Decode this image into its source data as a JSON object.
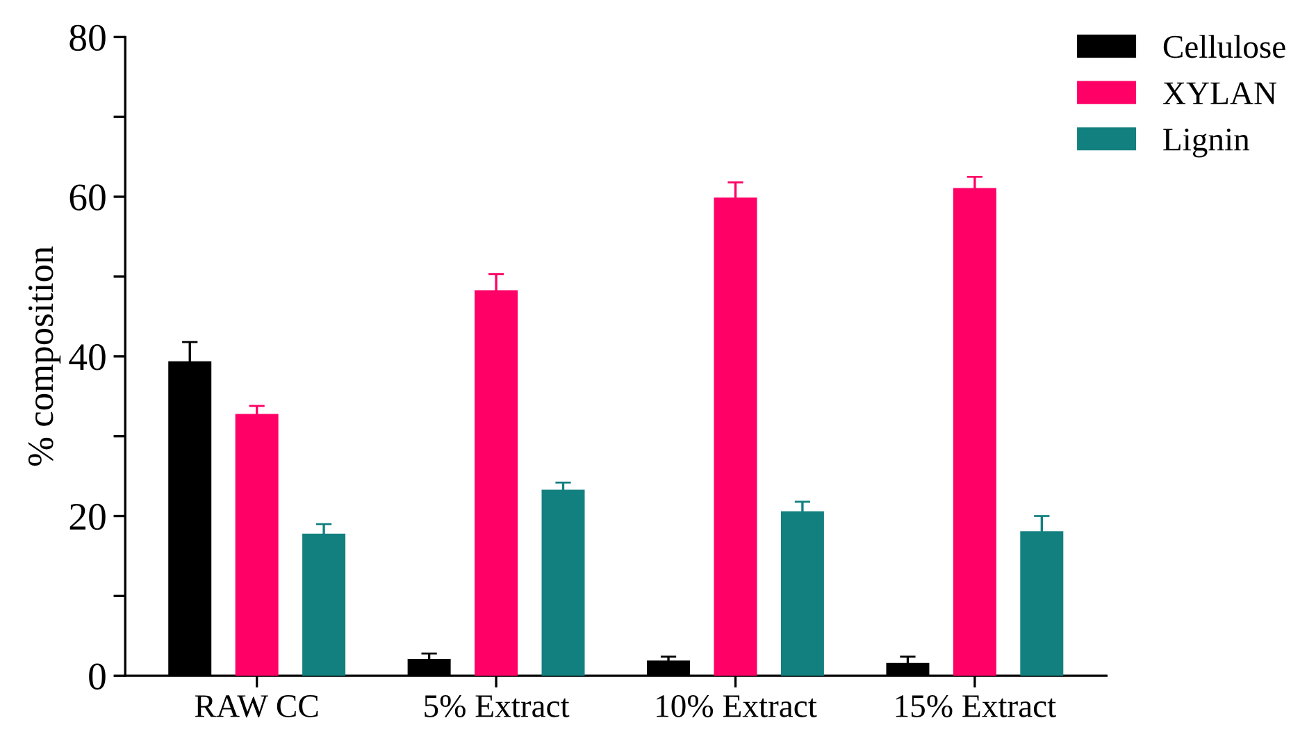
{
  "chart_data": {
    "type": "bar",
    "ylabel": "% composition",
    "categories": [
      "RAW CC",
      "5% Extract",
      "10% Extract",
      "15% Extract"
    ],
    "series": [
      {
        "name": "Cellulose",
        "color": "#000000",
        "values": [
          39.4,
          2.1,
          1.9,
          1.6
        ],
        "errors": [
          2.4,
          0.7,
          0.5,
          0.8
        ]
      },
      {
        "name": "XYLAN",
        "color": "#ff0066",
        "values": [
          32.8,
          48.3,
          59.9,
          61.1
        ],
        "errors": [
          1.0,
          2.0,
          1.9,
          1.4
        ]
      },
      {
        "name": "Lignin",
        "color": "#138080",
        "values": [
          17.8,
          23.3,
          20.6,
          18.1
        ],
        "errors": [
          1.2,
          0.9,
          1.2,
          1.9
        ]
      }
    ],
    "ylim": [
      0,
      80
    ],
    "yticks": [
      0,
      {
        "value": 10,
        "label": null
      },
      20,
      {
        "value": 30,
        "label": null
      },
      40,
      {
        "value": 50,
        "label": null
      },
      60,
      {
        "value": 70,
        "label": null
      },
      80
    ],
    "grid": false,
    "legend": "top right"
  }
}
